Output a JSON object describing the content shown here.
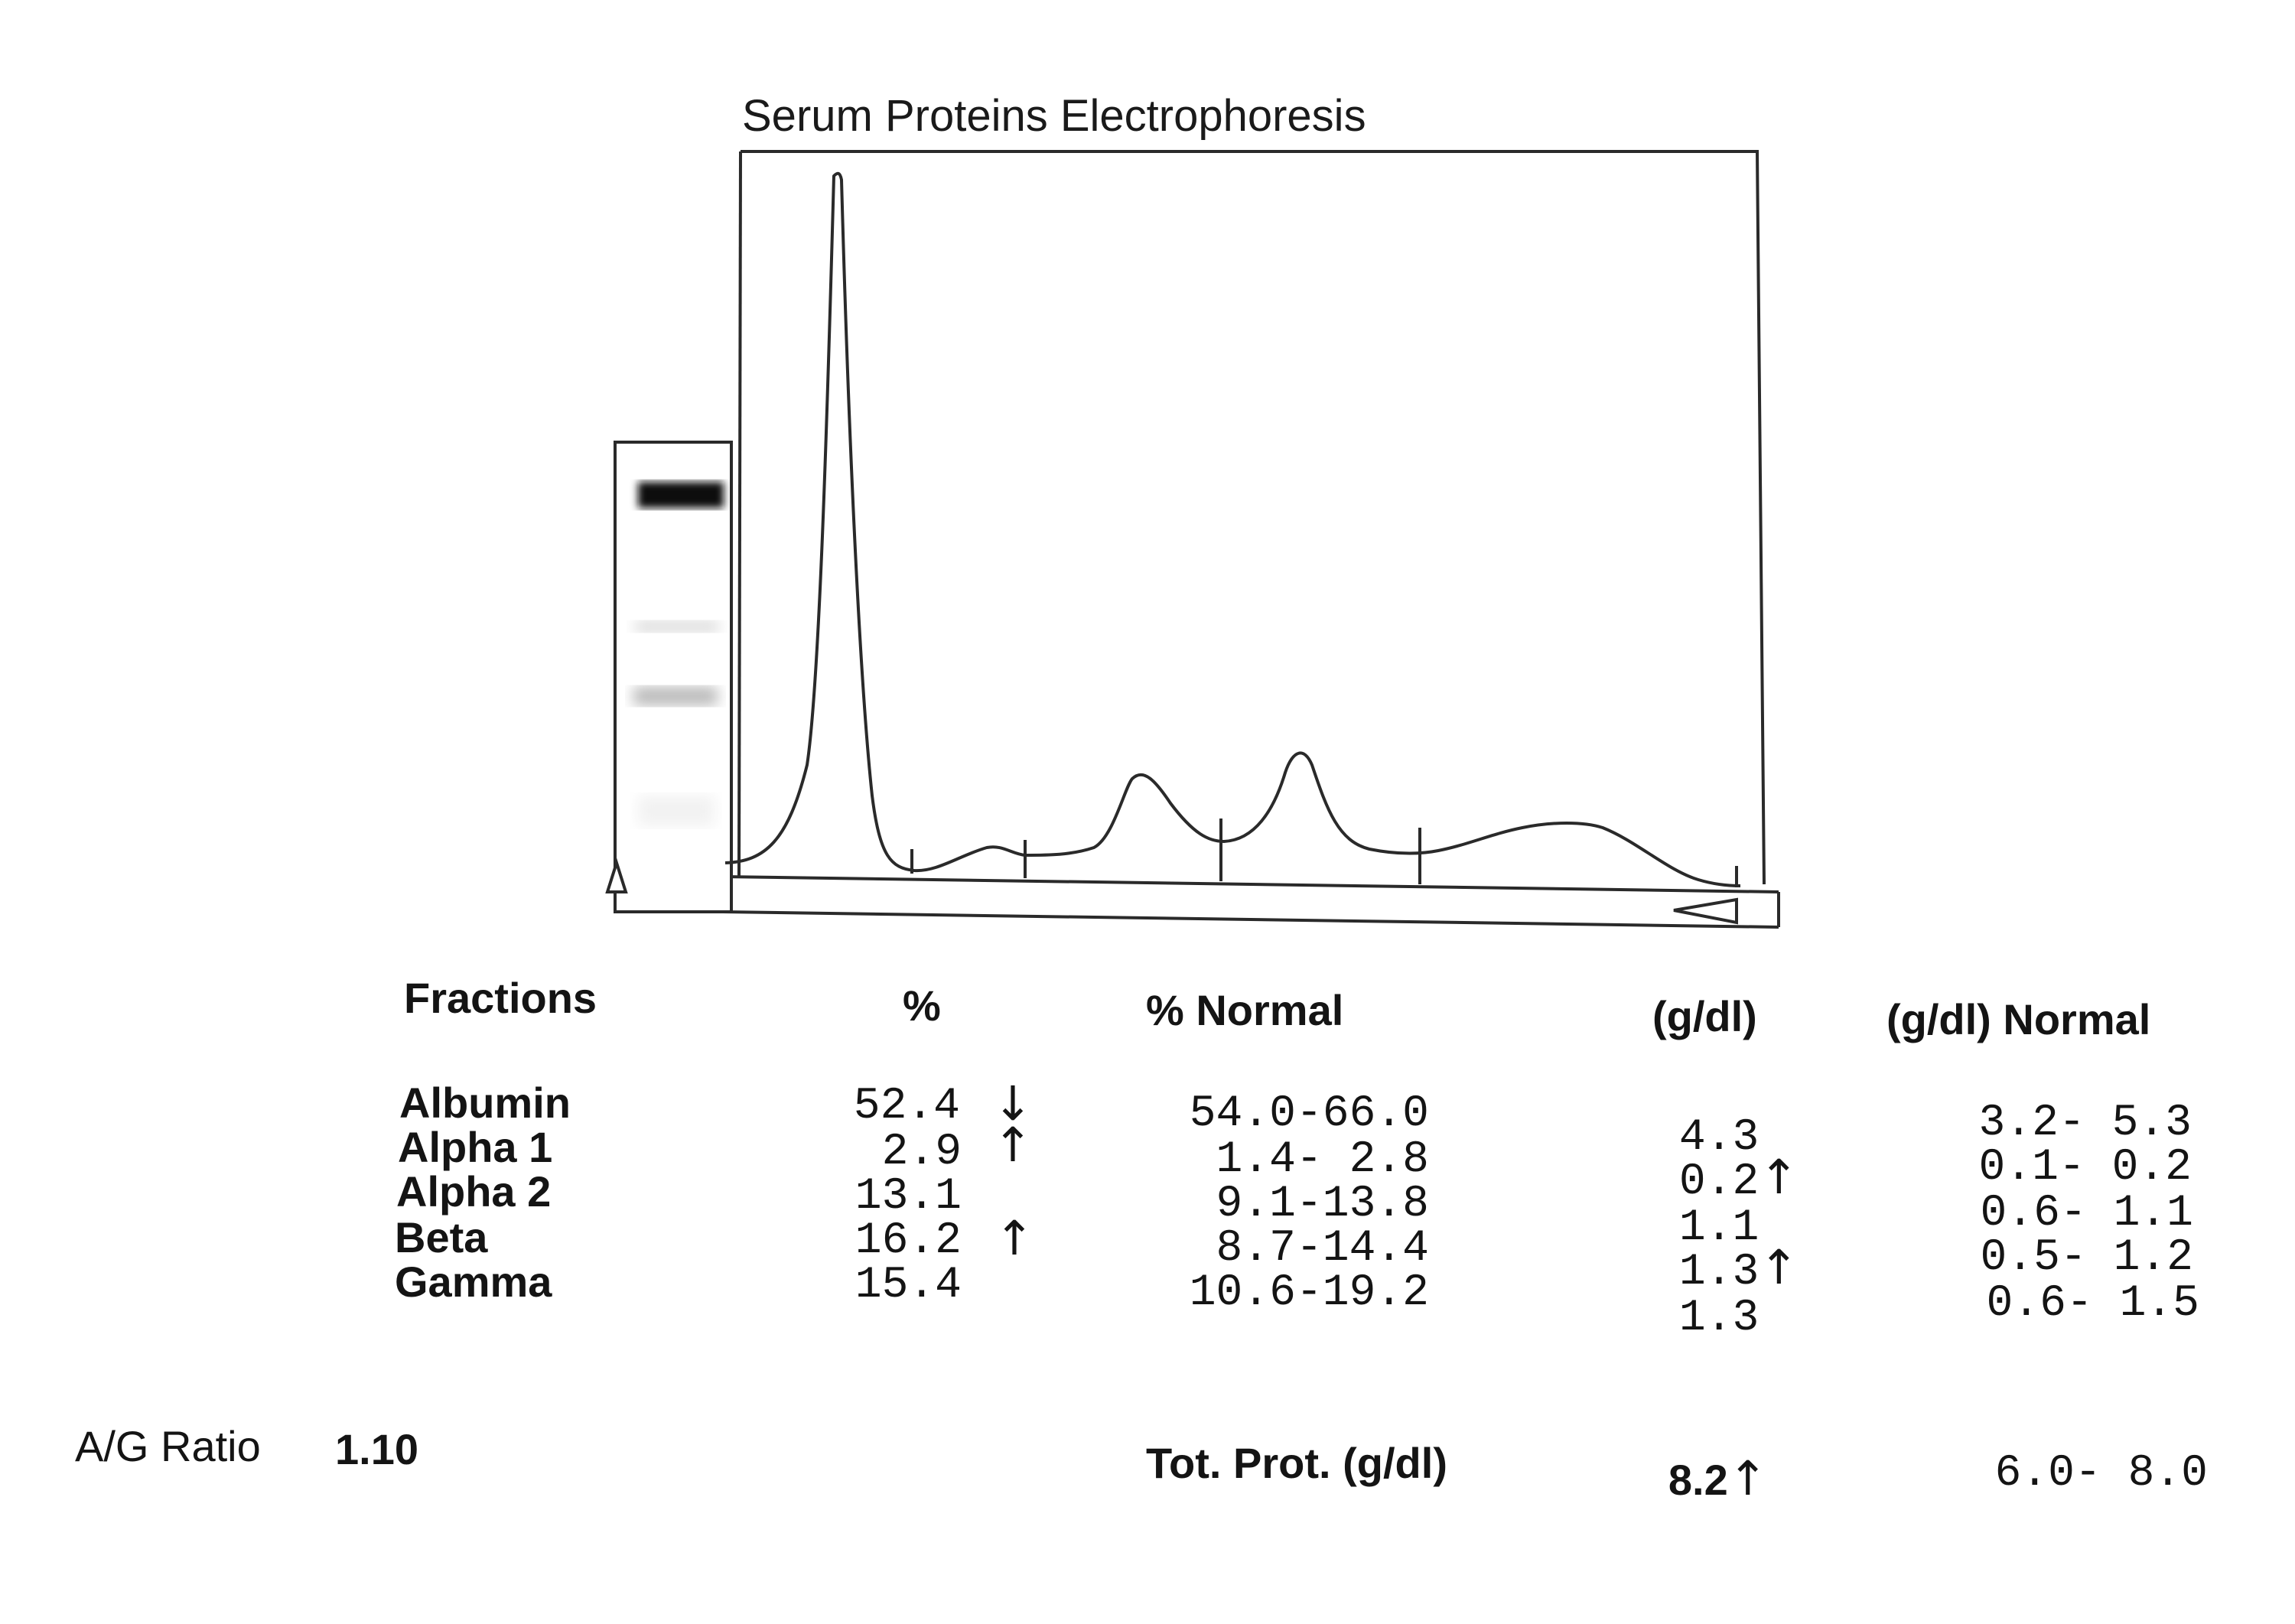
{
  "title": "Serum Proteins Electrophoresis",
  "headers": {
    "fractions": "Fractions",
    "percent": "%",
    "percent_normal": "% Normal",
    "gdl": "(g/dl)",
    "gdl_normal": "(g/dl) Normal"
  },
  "rows": [
    {
      "fraction": "Albumin",
      "percent": "52.4",
      "percent_flag": "↓",
      "percent_normal": "54.0-66.0",
      "gdl": "4.3",
      "gdl_flag": "",
      "gdl_normal": "3.2- 5.3"
    },
    {
      "fraction": "Alpha 1",
      "percent": "2.9",
      "percent_flag": "↑",
      "percent_normal": "1.4- 2.8",
      "gdl": "0.2",
      "gdl_flag": "↑",
      "gdl_normal": "0.1- 0.2"
    },
    {
      "fraction": "Alpha 2",
      "percent": "13.1",
      "percent_flag": "",
      "percent_normal": "9.1-13.8",
      "gdl": "1.1",
      "gdl_flag": "",
      "gdl_normal": "0.6- 1.1"
    },
    {
      "fraction": "Beta",
      "percent": "16.2",
      "percent_flag": "↑",
      "percent_normal": "8.7-14.4",
      "gdl": "1.3",
      "gdl_flag": "↑",
      "gdl_normal": "0.5- 1.2"
    },
    {
      "fraction": "Gamma",
      "percent": "15.4",
      "percent_flag": "",
      "percent_normal": "10.6-19.2",
      "gdl": "1.3",
      "gdl_flag": "",
      "gdl_normal": "0.6- 1.5"
    }
  ],
  "ag_ratio": {
    "label": "A/G Ratio",
    "value": "1.10"
  },
  "total_protein": {
    "label": "Tot. Prot. (g/dl)",
    "value": "8.2",
    "flag": "↑",
    "normal": "6.0- 8.0"
  },
  "densitometry": {
    "fractions": [
      "Albumin",
      "Alpha 1",
      "Alpha 2",
      "Beta",
      "Gamma"
    ],
    "relative_peak_heights": [
      1.0,
      0.04,
      0.13,
      0.17,
      0.06
    ],
    "gel_band_intensity": [
      1.0,
      0.1,
      0.3,
      0.35,
      0.12
    ]
  }
}
